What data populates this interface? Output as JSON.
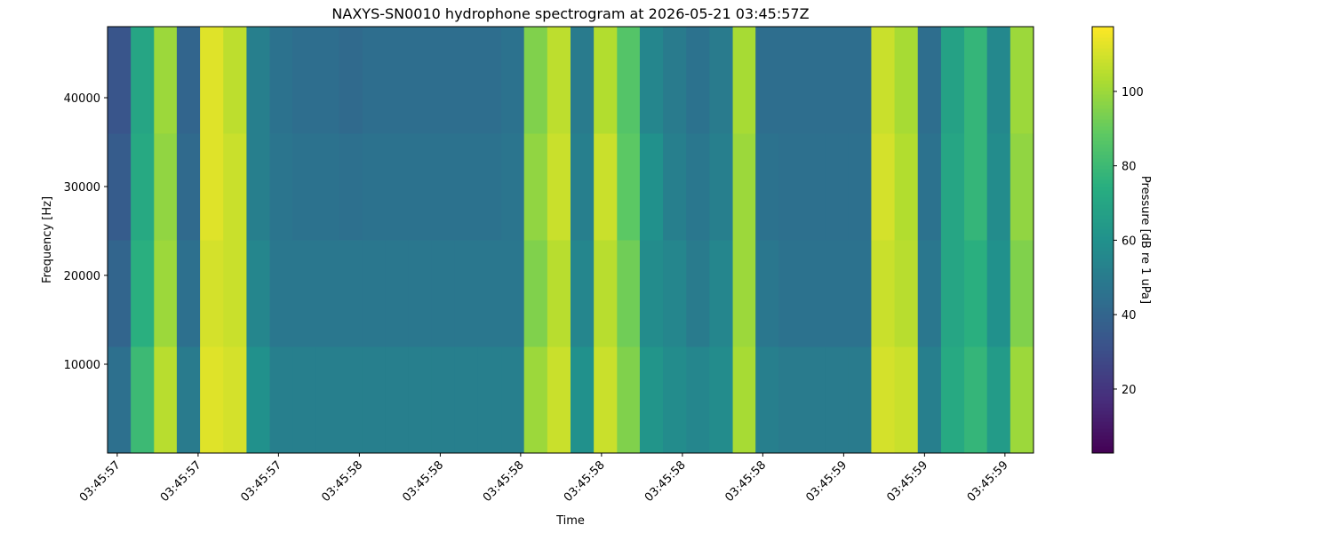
{
  "chart_data": {
    "type": "heatmap",
    "title": "NAXYS-SN0010 hydrophone spectrogram at 2026-05-21 03:45:57Z",
    "xlabel": "Time",
    "ylabel": "Frequency [Hz]",
    "colorbar_label": "Pressure [dB re 1 uPa]",
    "colormap": "viridis",
    "xbins": [
      57.48,
      57.528,
      57.576,
      57.623,
      57.671,
      57.719,
      57.767,
      57.815,
      57.862,
      57.91,
      57.958,
      58.006,
      58.054,
      58.101,
      58.149,
      58.197,
      58.245,
      58.293,
      58.34,
      58.388,
      58.436,
      58.484,
      58.532,
      58.579,
      58.627,
      58.675,
      58.723,
      58.771,
      58.818,
      58.866,
      58.914,
      58.962,
      59.01,
      59.057,
      59.105,
      59.153,
      59.201,
      59.249,
      59.296,
      59.344,
      59.392
    ],
    "ybins": [
      0,
      12000,
      24000,
      36000,
      48000
    ],
    "z": [
      [
        45,
        80,
        105,
        50,
        112,
        110,
        60,
        52,
        52,
        52,
        52,
        52,
        52,
        52,
        52,
        52,
        52,
        52,
        100,
        108,
        60,
        108,
        95,
        62,
        58,
        55,
        58,
        102,
        52,
        50,
        50,
        50,
        50,
        110,
        108,
        52,
        72,
        78,
        65,
        100
      ],
      [
        40,
        75,
        100,
        45,
        110,
        108,
        55,
        48,
        48,
        48,
        48,
        48,
        48,
        48,
        48,
        48,
        48,
        48,
        95,
        105,
        55,
        105,
        92,
        58,
        55,
        50,
        55,
        100,
        48,
        46,
        46,
        46,
        46,
        108,
        105,
        48,
        70,
        75,
        60,
        95
      ],
      [
        36,
        72,
        98,
        42,
        112,
        108,
        52,
        47,
        46,
        46,
        45,
        46,
        46,
        46,
        46,
        46,
        46,
        47,
        98,
        108,
        52,
        108,
        88,
        60,
        52,
        48,
        52,
        100,
        46,
        45,
        45,
        45,
        45,
        110,
        104,
        46,
        70,
        78,
        58,
        98
      ],
      [
        33,
        70,
        100,
        40,
        112,
        106,
        52,
        46,
        44,
        44,
        42,
        44,
        44,
        44,
        44,
        44,
        44,
        46,
        95,
        106,
        50,
        104,
        86,
        55,
        50,
        46,
        50,
        102,
        44,
        44,
        44,
        44,
        44,
        108,
        102,
        44,
        68,
        78,
        56,
        100
      ]
    ],
    "xlim": [
      57.48,
      59.392
    ],
    "ylim": [
      0,
      48000
    ],
    "clim": [
      2.8,
      117.4
    ],
    "xticks": [
      {
        "value": 57.5,
        "label": "03:45:57"
      },
      {
        "value": 57.667,
        "label": "03:45:57"
      },
      {
        "value": 57.833,
        "label": "03:45:57"
      },
      {
        "value": 58.0,
        "label": "03:45:58"
      },
      {
        "value": 58.167,
        "label": "03:45:58"
      },
      {
        "value": 58.333,
        "label": "03:45:58"
      },
      {
        "value": 58.5,
        "label": "03:45:58"
      },
      {
        "value": 58.667,
        "label": "03:45:58"
      },
      {
        "value": 58.833,
        "label": "03:45:58"
      },
      {
        "value": 59.0,
        "label": "03:45:59"
      },
      {
        "value": 59.167,
        "label": "03:45:59"
      },
      {
        "value": 59.333,
        "label": "03:45:59"
      }
    ],
    "yticks": [
      10000,
      20000,
      30000,
      40000
    ],
    "cticks": [
      20,
      40,
      60,
      80,
      100
    ]
  }
}
